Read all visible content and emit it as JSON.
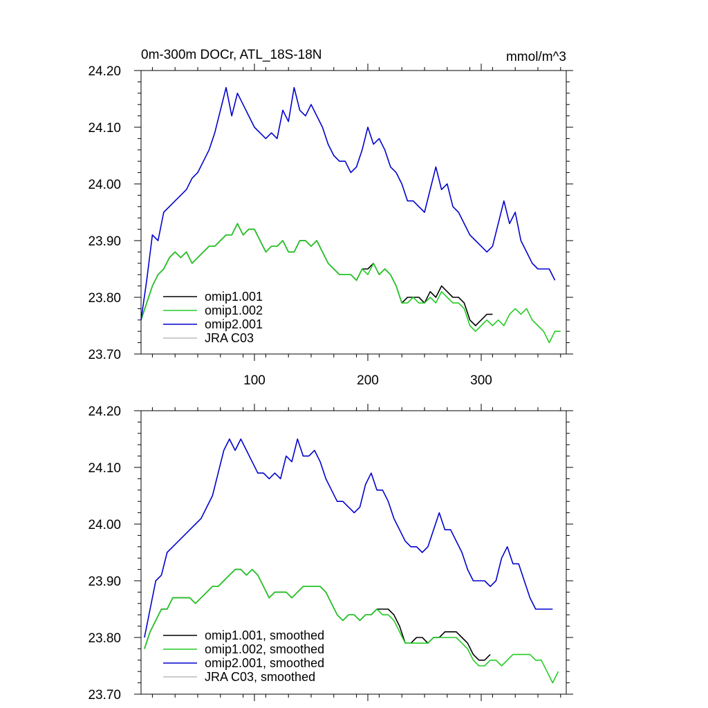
{
  "chart_data": [
    {
      "type": "line",
      "title": "0m-300m DOCr, ATL_18S-18N",
      "units": "mmol/m^3",
      "xlabel": "",
      "ylabel": "",
      "xlim": [
        0,
        375
      ],
      "ylim": [
        23.7,
        24.2
      ],
      "yticks": [
        23.7,
        23.8,
        23.9,
        24.0,
        24.1,
        24.2
      ],
      "ytick_labels": [
        "23.70",
        "23.80",
        "23.90",
        "24.00",
        "24.10",
        "24.20"
      ],
      "xticks": [
        100,
        200,
        300
      ],
      "xtick_labels": [
        "100",
        "200",
        "300"
      ],
      "legend": [
        "omip1.001",
        "omip1.002",
        "omip2.001",
        "JRA C03"
      ],
      "legend_position": "bottom-left",
      "series": [
        {
          "name": "omip1.001",
          "color": "#000000",
          "x": [
            0,
            5,
            10,
            15,
            20,
            25,
            30,
            35,
            40,
            45,
            50,
            55,
            60,
            65,
            70,
            75,
            80,
            85,
            90,
            95,
            100,
            105,
            110,
            115,
            120,
            125,
            130,
            135,
            140,
            145,
            150,
            155,
            160,
            165,
            170,
            175,
            180,
            185,
            190,
            195,
            200,
            205,
            210,
            215,
            220,
            225,
            230,
            235,
            240,
            245,
            250,
            255,
            260,
            265,
            270,
            275,
            280,
            285,
            290,
            295,
            300,
            305,
            310
          ],
          "values": [
            23.76,
            23.79,
            23.82,
            23.84,
            23.85,
            23.87,
            23.88,
            23.87,
            23.88,
            23.86,
            23.87,
            23.88,
            23.89,
            23.89,
            23.9,
            23.91,
            23.91,
            23.93,
            23.91,
            23.92,
            23.92,
            23.9,
            23.88,
            23.89,
            23.89,
            23.9,
            23.88,
            23.88,
            23.9,
            23.9,
            23.89,
            23.9,
            23.88,
            23.86,
            23.85,
            23.84,
            23.84,
            23.84,
            23.83,
            23.85,
            23.85,
            23.86,
            23.84,
            23.85,
            23.84,
            23.82,
            23.79,
            23.8,
            23.8,
            23.8,
            23.79,
            23.81,
            23.8,
            23.82,
            23.81,
            23.8,
            23.8,
            23.79,
            23.76,
            23.75,
            23.76,
            23.77,
            23.77
          ]
        },
        {
          "name": "omip1.002",
          "color": "#22cc22",
          "x": [
            0,
            5,
            10,
            15,
            20,
            25,
            30,
            35,
            40,
            45,
            50,
            55,
            60,
            65,
            70,
            75,
            80,
            85,
            90,
            95,
            100,
            105,
            110,
            115,
            120,
            125,
            130,
            135,
            140,
            145,
            150,
            155,
            160,
            165,
            170,
            175,
            180,
            185,
            190,
            195,
            200,
            205,
            210,
            215,
            220,
            225,
            230,
            235,
            240,
            245,
            250,
            255,
            260,
            265,
            270,
            275,
            280,
            285,
            290,
            295,
            300,
            305,
            310,
            315,
            320,
            325,
            330,
            335,
            340,
            345,
            350,
            355,
            360,
            365,
            370
          ],
          "values": [
            23.76,
            23.79,
            23.82,
            23.84,
            23.85,
            23.87,
            23.88,
            23.87,
            23.88,
            23.86,
            23.87,
            23.88,
            23.89,
            23.89,
            23.9,
            23.91,
            23.91,
            23.93,
            23.91,
            23.92,
            23.92,
            23.9,
            23.88,
            23.89,
            23.89,
            23.9,
            23.88,
            23.88,
            23.9,
            23.9,
            23.89,
            23.9,
            23.88,
            23.86,
            23.85,
            23.84,
            23.84,
            23.84,
            23.83,
            23.85,
            23.84,
            23.86,
            23.84,
            23.85,
            23.84,
            23.82,
            23.79,
            23.79,
            23.8,
            23.79,
            23.79,
            23.8,
            23.79,
            23.81,
            23.8,
            23.79,
            23.79,
            23.78,
            23.75,
            23.74,
            23.75,
            23.76,
            23.75,
            23.76,
            23.75,
            23.77,
            23.78,
            23.77,
            23.78,
            23.76,
            23.75,
            23.74,
            23.72,
            23.74,
            23.74
          ]
        },
        {
          "name": "omip2.001",
          "color": "#0000cc",
          "x": [
            0,
            5,
            10,
            15,
            20,
            25,
            30,
            35,
            40,
            45,
            50,
            55,
            60,
            65,
            70,
            75,
            80,
            85,
            90,
            95,
            100,
            105,
            110,
            115,
            120,
            125,
            130,
            135,
            140,
            145,
            150,
            155,
            160,
            165,
            170,
            175,
            180,
            185,
            190,
            195,
            200,
            205,
            210,
            215,
            220,
            225,
            230,
            235,
            240,
            245,
            250,
            255,
            260,
            265,
            270,
            275,
            280,
            285,
            290,
            295,
            300,
            305,
            310,
            315,
            320,
            325,
            330,
            335,
            340,
            345,
            350,
            355,
            360,
            365
          ],
          "values": [
            23.76,
            23.83,
            23.91,
            23.9,
            23.95,
            23.96,
            23.97,
            23.98,
            23.99,
            24.01,
            24.02,
            24.04,
            24.06,
            24.09,
            24.13,
            24.17,
            24.12,
            24.16,
            24.14,
            24.12,
            24.1,
            24.09,
            24.08,
            24.09,
            24.08,
            24.13,
            24.11,
            24.17,
            24.13,
            24.12,
            24.14,
            24.12,
            24.1,
            24.07,
            24.05,
            24.04,
            24.04,
            24.02,
            24.03,
            24.06,
            24.1,
            24.07,
            24.08,
            24.06,
            24.03,
            24.02,
            24.0,
            23.97,
            23.97,
            23.96,
            23.95,
            23.99,
            24.03,
            23.99,
            24.0,
            23.96,
            23.95,
            23.93,
            23.91,
            23.9,
            23.89,
            23.88,
            23.89,
            23.93,
            23.97,
            23.93,
            23.95,
            23.9,
            23.88,
            23.86,
            23.85,
            23.85,
            23.85,
            23.83
          ]
        },
        {
          "name": "JRA C03",
          "color": "#bbbbbb",
          "x": [],
          "values": []
        }
      ]
    },
    {
      "type": "line",
      "title": "",
      "xlabel": "",
      "ylabel": "",
      "xlim": [
        0,
        375
      ],
      "ylim": [
        23.7,
        24.2
      ],
      "yticks": [
        23.7,
        23.8,
        23.9,
        24.0,
        24.1,
        24.2
      ],
      "ytick_labels": [
        "23.70",
        "23.80",
        "23.90",
        "24.00",
        "24.10",
        "24.20"
      ],
      "xticks": [
        100,
        200,
        300
      ],
      "xtick_labels": [],
      "legend": [
        "omip1.001, smoothed",
        "omip1.002, smoothed",
        "omip2.001, smoothed",
        "JRA C03, smoothed"
      ],
      "legend_position": "bottom-left",
      "series": [
        {
          "name": "omip1.001, smoothed",
          "color": "#000000",
          "x": [
            3,
            8,
            13,
            18,
            23,
            28,
            33,
            38,
            43,
            48,
            53,
            58,
            63,
            68,
            73,
            78,
            83,
            88,
            93,
            98,
            103,
            108,
            113,
            118,
            123,
            128,
            133,
            138,
            143,
            148,
            153,
            158,
            163,
            168,
            173,
            178,
            183,
            188,
            193,
            198,
            203,
            208,
            213,
            218,
            223,
            228,
            233,
            238,
            243,
            248,
            253,
            258,
            263,
            268,
            273,
            278,
            283,
            288,
            293,
            298,
            303,
            308
          ],
          "values": [
            23.78,
            23.81,
            23.83,
            23.85,
            23.85,
            23.87,
            23.87,
            23.87,
            23.87,
            23.86,
            23.87,
            23.88,
            23.89,
            23.89,
            23.9,
            23.91,
            23.92,
            23.92,
            23.91,
            23.92,
            23.91,
            23.89,
            23.87,
            23.88,
            23.88,
            23.88,
            23.87,
            23.88,
            23.89,
            23.89,
            23.89,
            23.89,
            23.88,
            23.86,
            23.84,
            23.83,
            23.84,
            23.84,
            23.83,
            23.84,
            23.84,
            23.85,
            23.85,
            23.85,
            23.84,
            23.82,
            23.79,
            23.79,
            23.8,
            23.8,
            23.79,
            23.8,
            23.8,
            23.81,
            23.81,
            23.81,
            23.8,
            23.79,
            23.77,
            23.76,
            23.76,
            23.77
          ]
        },
        {
          "name": "omip1.002, smoothed",
          "color": "#22cc22",
          "x": [
            3,
            8,
            13,
            18,
            23,
            28,
            33,
            38,
            43,
            48,
            53,
            58,
            63,
            68,
            73,
            78,
            83,
            88,
            93,
            98,
            103,
            108,
            113,
            118,
            123,
            128,
            133,
            138,
            143,
            148,
            153,
            158,
            163,
            168,
            173,
            178,
            183,
            188,
            193,
            198,
            203,
            208,
            213,
            218,
            223,
            228,
            233,
            238,
            243,
            248,
            253,
            258,
            263,
            268,
            273,
            278,
            283,
            288,
            293,
            298,
            303,
            308,
            313,
            318,
            323,
            328,
            333,
            338,
            343,
            348,
            353,
            358,
            363,
            368
          ],
          "values": [
            23.78,
            23.81,
            23.83,
            23.85,
            23.85,
            23.87,
            23.87,
            23.87,
            23.87,
            23.86,
            23.87,
            23.88,
            23.89,
            23.89,
            23.9,
            23.91,
            23.92,
            23.92,
            23.91,
            23.92,
            23.91,
            23.89,
            23.87,
            23.88,
            23.88,
            23.88,
            23.87,
            23.88,
            23.89,
            23.89,
            23.89,
            23.89,
            23.88,
            23.86,
            23.84,
            23.83,
            23.84,
            23.84,
            23.83,
            23.84,
            23.84,
            23.85,
            23.84,
            23.84,
            23.83,
            23.81,
            23.79,
            23.79,
            23.79,
            23.79,
            23.79,
            23.8,
            23.8,
            23.8,
            23.8,
            23.8,
            23.79,
            23.78,
            23.76,
            23.75,
            23.75,
            23.76,
            23.76,
            23.75,
            23.76,
            23.77,
            23.77,
            23.77,
            23.77,
            23.76,
            23.76,
            23.74,
            23.72,
            23.74
          ]
        },
        {
          "name": "omip2.001, smoothed",
          "color": "#0000cc",
          "x": [
            3,
            8,
            13,
            18,
            23,
            28,
            33,
            38,
            43,
            48,
            53,
            58,
            63,
            68,
            73,
            78,
            83,
            88,
            93,
            98,
            103,
            108,
            113,
            118,
            123,
            128,
            133,
            138,
            143,
            148,
            153,
            158,
            163,
            168,
            173,
            178,
            183,
            188,
            193,
            198,
            203,
            208,
            213,
            218,
            223,
            228,
            233,
            238,
            243,
            248,
            253,
            258,
            263,
            268,
            273,
            278,
            283,
            288,
            293,
            298,
            303,
            308,
            313,
            318,
            323,
            328,
            333,
            338,
            343,
            348,
            353,
            358,
            363
          ],
          "values": [
            23.8,
            23.85,
            23.9,
            23.91,
            23.95,
            23.96,
            23.97,
            23.98,
            23.99,
            24.0,
            24.01,
            24.03,
            24.05,
            24.09,
            24.13,
            24.15,
            24.13,
            24.15,
            24.13,
            24.11,
            24.09,
            24.09,
            24.08,
            24.09,
            24.08,
            24.12,
            24.11,
            24.15,
            24.12,
            24.12,
            24.13,
            24.11,
            24.08,
            24.06,
            24.04,
            24.04,
            24.03,
            24.02,
            24.03,
            24.07,
            24.09,
            24.06,
            24.06,
            24.04,
            24.01,
            23.99,
            23.97,
            23.96,
            23.96,
            23.95,
            23.96,
            23.99,
            24.02,
            23.99,
            23.99,
            23.97,
            23.95,
            23.92,
            23.9,
            23.9,
            23.9,
            23.89,
            23.9,
            23.94,
            23.96,
            23.93,
            23.93,
            23.9,
            23.87,
            23.85,
            23.85,
            23.85,
            23.85
          ]
        },
        {
          "name": "JRA C03, smoothed",
          "color": "#bbbbbb",
          "x": [],
          "values": []
        }
      ]
    }
  ]
}
